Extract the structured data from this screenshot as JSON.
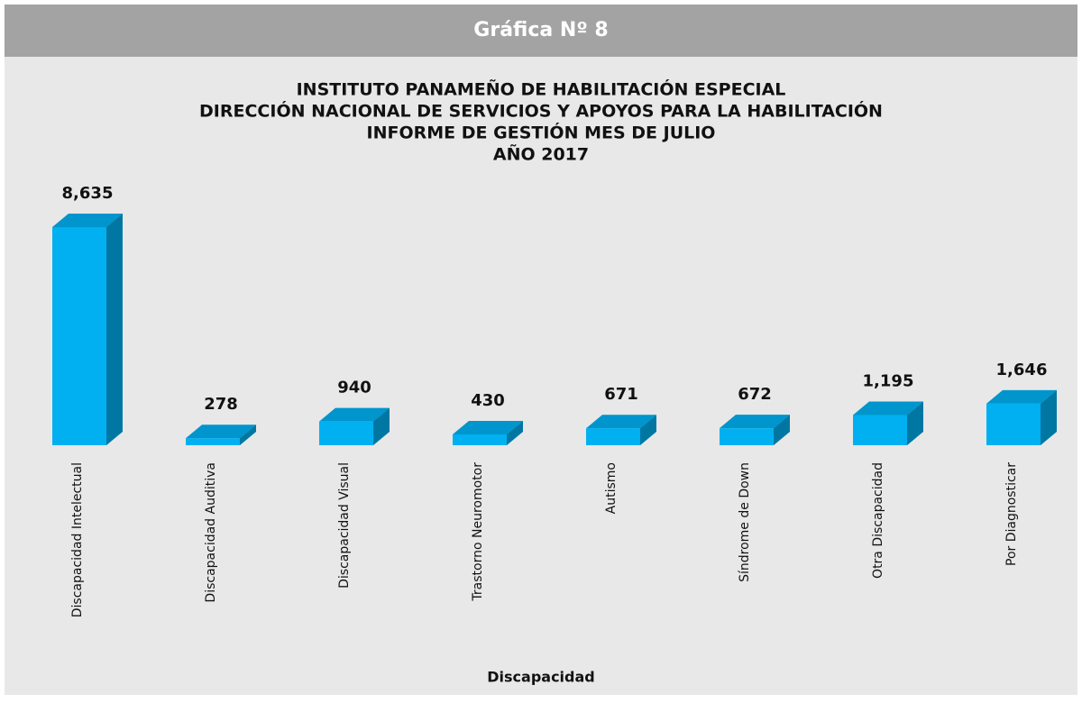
{
  "chart_data": {
    "type": "bar3d",
    "caption": "Gráfica Nº 8",
    "title": [
      "INSTITUTO PANAMEÑO DE HABILITACIÓN ESPECIAL",
      "DIRECCIÓN NACIONAL DE SERVICIOS Y APOYOS PARA LA HABILITACIÓN",
      "INFORME DE GESTIÓN MES DE JULIO",
      "AÑO 2017"
    ],
    "xlabel": "Discapacidad",
    "categories": [
      "Discapacidad Intelectual",
      "Discapacidad Auditiva",
      "Discapacidad Visual",
      "Trastorno Neuromotor",
      "Autismo",
      "Síndrome de Down",
      "Otra Discapacidad",
      "Por Diagnosticar"
    ],
    "values": [
      8635,
      278,
      940,
      430,
      671,
      672,
      1195,
      1646
    ],
    "value_labels": [
      "8,635",
      "278",
      "940",
      "430",
      "671",
      "672",
      "1,195",
      "1,646"
    ],
    "color": "#00b0f0"
  }
}
